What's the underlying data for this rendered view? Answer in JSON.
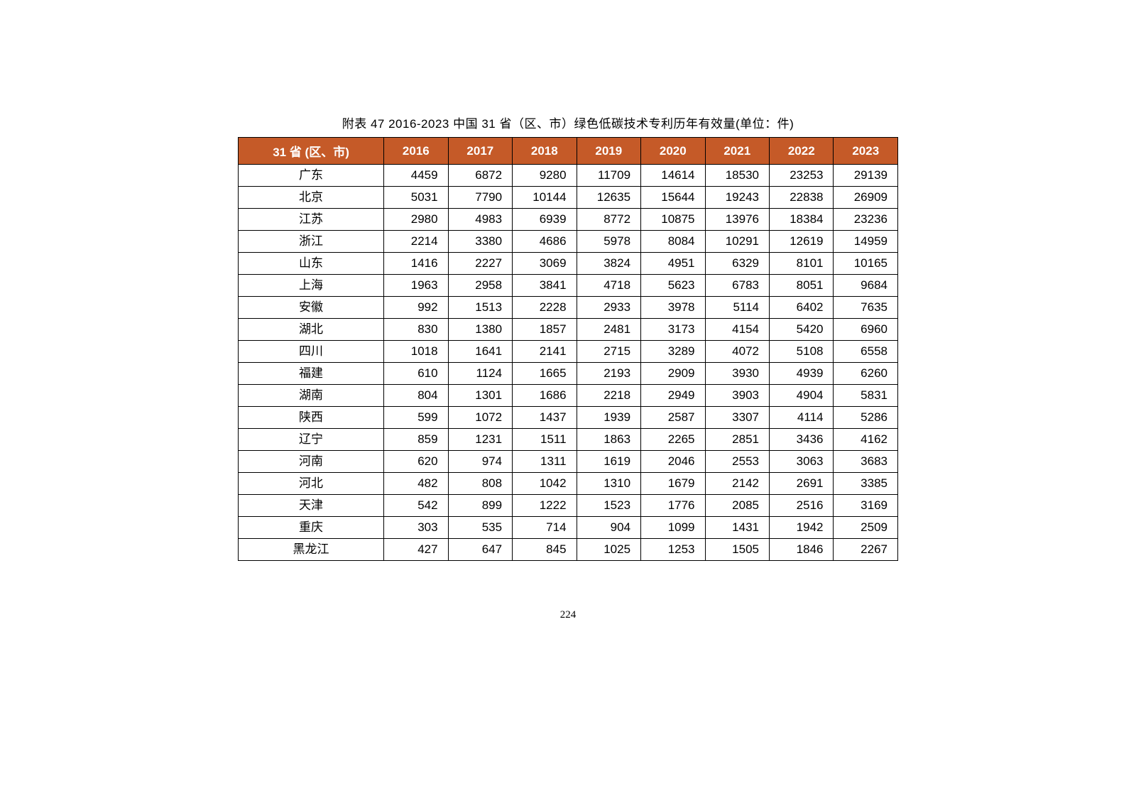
{
  "caption": "附表 47 2016-2023 中国 31 省（区、市）绿色低碳技术专利历年有效量(单位：件)",
  "page_number": "224",
  "table": {
    "header_color": "#c55a28",
    "header_text_color": "#ffffff",
    "border_color": "#000000",
    "columns": [
      "31 省 (区、市)",
      "2016",
      "2017",
      "2018",
      "2019",
      "2020",
      "2021",
      "2022",
      "2023"
    ],
    "rows": [
      [
        "广东",
        "4459",
        "6872",
        "9280",
        "11709",
        "14614",
        "18530",
        "23253",
        "29139"
      ],
      [
        "北京",
        "5031",
        "7790",
        "10144",
        "12635",
        "15644",
        "19243",
        "22838",
        "26909"
      ],
      [
        "江苏",
        "2980",
        "4983",
        "6939",
        "8772",
        "10875",
        "13976",
        "18384",
        "23236"
      ],
      [
        "浙江",
        "2214",
        "3380",
        "4686",
        "5978",
        "8084",
        "10291",
        "12619",
        "14959"
      ],
      [
        "山东",
        "1416",
        "2227",
        "3069",
        "3824",
        "4951",
        "6329",
        "8101",
        "10165"
      ],
      [
        "上海",
        "1963",
        "2958",
        "3841",
        "4718",
        "5623",
        "6783",
        "8051",
        "9684"
      ],
      [
        "安徽",
        "992",
        "1513",
        "2228",
        "2933",
        "3978",
        "5114",
        "6402",
        "7635"
      ],
      [
        "湖北",
        "830",
        "1380",
        "1857",
        "2481",
        "3173",
        "4154",
        "5420",
        "6960"
      ],
      [
        "四川",
        "1018",
        "1641",
        "2141",
        "2715",
        "3289",
        "4072",
        "5108",
        "6558"
      ],
      [
        "福建",
        "610",
        "1124",
        "1665",
        "2193",
        "2909",
        "3930",
        "4939",
        "6260"
      ],
      [
        "湖南",
        "804",
        "1301",
        "1686",
        "2218",
        "2949",
        "3903",
        "4904",
        "5831"
      ],
      [
        "陕西",
        "599",
        "1072",
        "1437",
        "1939",
        "2587",
        "3307",
        "4114",
        "5286"
      ],
      [
        "辽宁",
        "859",
        "1231",
        "1511",
        "1863",
        "2265",
        "2851",
        "3436",
        "4162"
      ],
      [
        "河南",
        "620",
        "974",
        "1311",
        "1619",
        "2046",
        "2553",
        "3063",
        "3683"
      ],
      [
        "河北",
        "482",
        "808",
        "1042",
        "1310",
        "1679",
        "2142",
        "2691",
        "3385"
      ],
      [
        "天津",
        "542",
        "899",
        "1222",
        "1523",
        "1776",
        "2085",
        "2516",
        "3169"
      ],
      [
        "重庆",
        "303",
        "535",
        "714",
        "904",
        "1099",
        "1431",
        "1942",
        "2509"
      ],
      [
        "黑龙江",
        "427",
        "647",
        "845",
        "1025",
        "1253",
        "1505",
        "1846",
        "2267"
      ]
    ]
  }
}
